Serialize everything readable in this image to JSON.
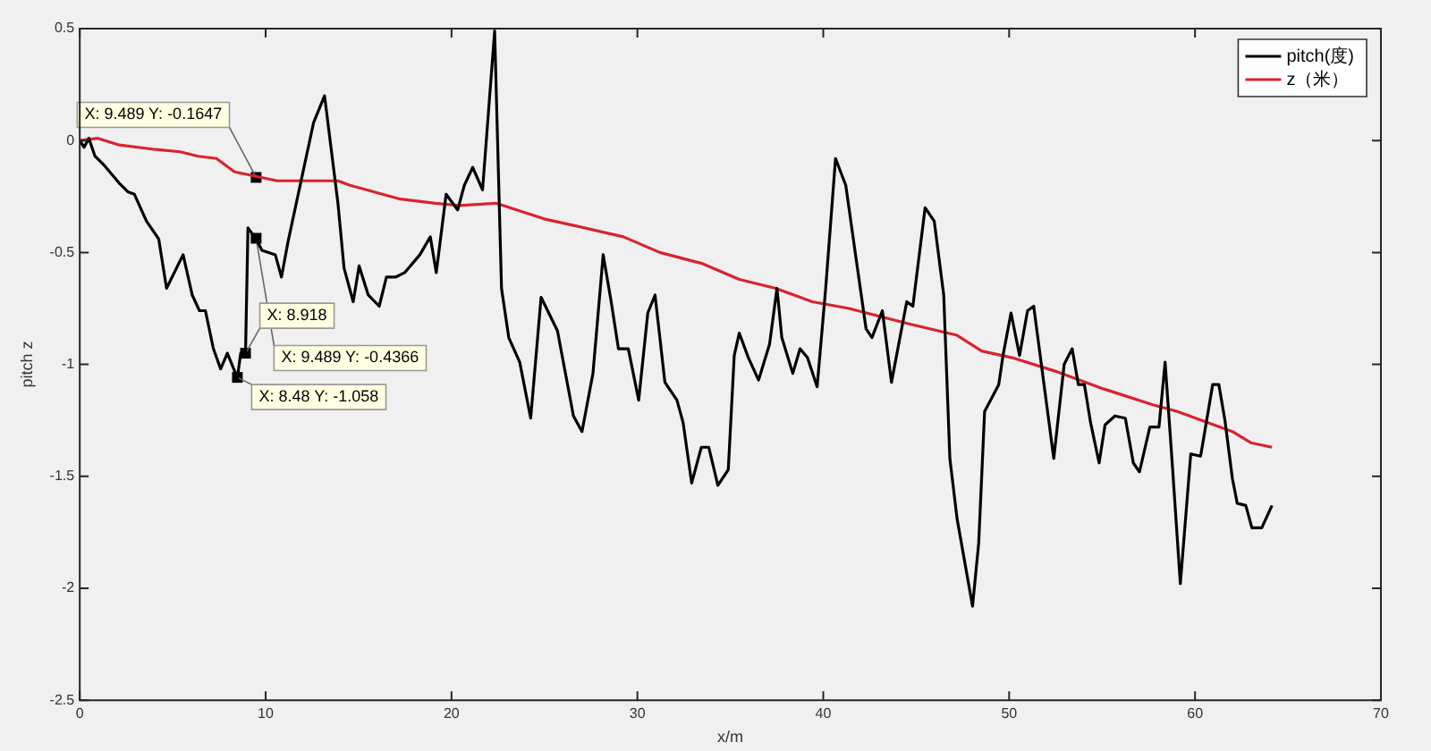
{
  "chart_data": {
    "type": "line",
    "xlabel": "x/m",
    "ylabel": "pitch z",
    "xlim": [
      0,
      70
    ],
    "xticks": [
      0,
      10,
      20,
      30,
      40,
      50,
      60,
      70
    ],
    "ylim": [
      -2.5,
      0.5
    ],
    "yticks": [
      -2.5,
      -2,
      -1.5,
      -1,
      -0.5,
      0,
      0.5
    ],
    "grid": false,
    "legend": "top right",
    "marker": "none",
    "line_style": "solid",
    "series": [
      {
        "name": "pitch(度)",
        "color": "#000000",
        "x": [
          0,
          0.23,
          0.49,
          0.82,
          1.31,
          2.12,
          2.61,
          2.94,
          3.59,
          4.25,
          4.67,
          5.56,
          6.05,
          6.44,
          6.76,
          7.19,
          7.58,
          7.94,
          8.48,
          8.66,
          8.918,
          9.05,
          9.31,
          9.489,
          9.8,
          10.52,
          10.85,
          11.21,
          12.58,
          13.17,
          13.89,
          14.22,
          14.71,
          15.03,
          15.52,
          16.11,
          16.5,
          16.99,
          17.48,
          18.3,
          18.86,
          19.18,
          19.71,
          20.33,
          20.69,
          21.14,
          21.67,
          22.32,
          22.69,
          23.08,
          23.67,
          24.26,
          24.82,
          25.7,
          26.56,
          27.02,
          27.61,
          28.16,
          28.59,
          28.98,
          29.51,
          30.07,
          30.56,
          30.95,
          31.48,
          32.13,
          32.46,
          32.92,
          33.44,
          33.84,
          34.33,
          34.89,
          35.21,
          35.48,
          35.97,
          36.52,
          37.11,
          37.51,
          37.77,
          38.36,
          38.75,
          39.15,
          39.67,
          40.13,
          40.66,
          41.21,
          41.77,
          42.3,
          42.62,
          43.18,
          43.67,
          44.49,
          44.82,
          45.48,
          45.97,
          46.48,
          46.81,
          47.2,
          48.03,
          48.36,
          48.68,
          49.44,
          49.67,
          50.1,
          50.56,
          50.99,
          51.32,
          52.4,
          52.96,
          53.39,
          53.72,
          54.05,
          54.38,
          54.84,
          55.16,
          55.69,
          56.25,
          56.68,
          57.01,
          57.57,
          58.06,
          58.39,
          58.78,
          59.21,
          59.77,
          60.3,
          60.95,
          61.28,
          61.61,
          62.01,
          62.27,
          62.73,
          63.06,
          63.59,
          64.14
        ],
        "values": [
          0,
          -0.03,
          0.01,
          -0.07,
          -0.11,
          -0.19,
          -0.23,
          -0.24,
          -0.36,
          -0.44,
          -0.66,
          -0.51,
          -0.69,
          -0.76,
          -0.76,
          -0.93,
          -1.02,
          -0.95,
          -1.06,
          -0.95,
          -0.95,
          -0.39,
          -0.42,
          -0.44,
          -0.49,
          -0.51,
          -0.61,
          -0.45,
          0.08,
          0.2,
          -0.28,
          -0.57,
          -0.72,
          -0.56,
          -0.69,
          -0.74,
          -0.61,
          -0.61,
          -0.59,
          -0.51,
          -0.43,
          -0.59,
          -0.24,
          -0.31,
          -0.2,
          -0.12,
          -0.22,
          0.49,
          -0.66,
          -0.88,
          -0.99,
          -1.24,
          -0.7,
          -0.85,
          -1.23,
          -1.3,
          -1.04,
          -0.51,
          -0.72,
          -0.93,
          -0.93,
          -1.16,
          -0.77,
          -0.69,
          -1.08,
          -1.16,
          -1.26,
          -1.53,
          -1.37,
          -1.37,
          -1.54,
          -1.47,
          -0.96,
          -0.86,
          -0.97,
          -1.07,
          -0.91,
          -0.66,
          -0.88,
          -1.04,
          -0.93,
          -0.97,
          -1.1,
          -0.66,
          -0.08,
          -0.2,
          -0.53,
          -0.84,
          -0.88,
          -0.76,
          -1.08,
          -0.72,
          -0.74,
          -0.3,
          -0.36,
          -0.69,
          -1.42,
          -1.69,
          -2.08,
          -1.8,
          -1.21,
          -1.09,
          -0.96,
          -0.77,
          -0.96,
          -0.76,
          -0.74,
          -1.42,
          -1,
          -0.93,
          -1.09,
          -1.09,
          -1.26,
          -1.44,
          -1.27,
          -1.23,
          -1.24,
          -1.44,
          -1.48,
          -1.28,
          -1.28,
          -0.99,
          -1.45,
          -1.98,
          -1.4,
          -1.41,
          -1.09,
          -1.09,
          -1.25,
          -1.51,
          -1.62,
          -1.63,
          -1.73,
          -1.73,
          -1.63
        ]
      },
      {
        "name": "z（米）",
        "color": "#d9232e",
        "x": [
          0,
          0.98,
          2.12,
          4.08,
          5.39,
          6.37,
          7.35,
          8.33,
          9.489,
          10.62,
          12.58,
          13.89,
          14.54,
          15.85,
          17.16,
          19.12,
          20.42,
          22.39,
          24.98,
          26.62,
          29.25,
          31.21,
          33.51,
          35.48,
          37.44,
          39.41,
          41.38,
          44.66,
          47.2,
          48.52,
          50.16,
          52.47,
          55.1,
          57.73,
          59.05,
          60.69,
          62.01,
          63,
          64.14
        ],
        "values": [
          0,
          0.01,
          -0.02,
          -0.04,
          -0.05,
          -0.07,
          -0.08,
          -0.14,
          -0.16,
          -0.18,
          -0.18,
          -0.18,
          -0.2,
          -0.23,
          -0.26,
          -0.28,
          -0.29,
          -0.28,
          -0.35,
          -0.38,
          -0.43,
          -0.5,
          -0.55,
          -0.62,
          -0.66,
          -0.72,
          -0.75,
          -0.82,
          -0.87,
          -0.94,
          -0.97,
          -1.03,
          -1.11,
          -1.18,
          -1.21,
          -1.26,
          -1.3,
          -1.35,
          -1.37
        ]
      }
    ],
    "annotations": [
      {
        "text": "X: 9.489 Y: -0.1647",
        "x": 9.489,
        "y": -0.1647
      },
      {
        "text": "X: 9.489 Y: -0.4366",
        "x": 9.489,
        "y": -0.4366
      },
      {
        "text": "X: 8.918",
        "x": 8.918,
        "y": -0.95
      },
      {
        "text": "X: 8.48 Y: -1.058",
        "x": 8.48,
        "y": -1.058
      }
    ]
  }
}
